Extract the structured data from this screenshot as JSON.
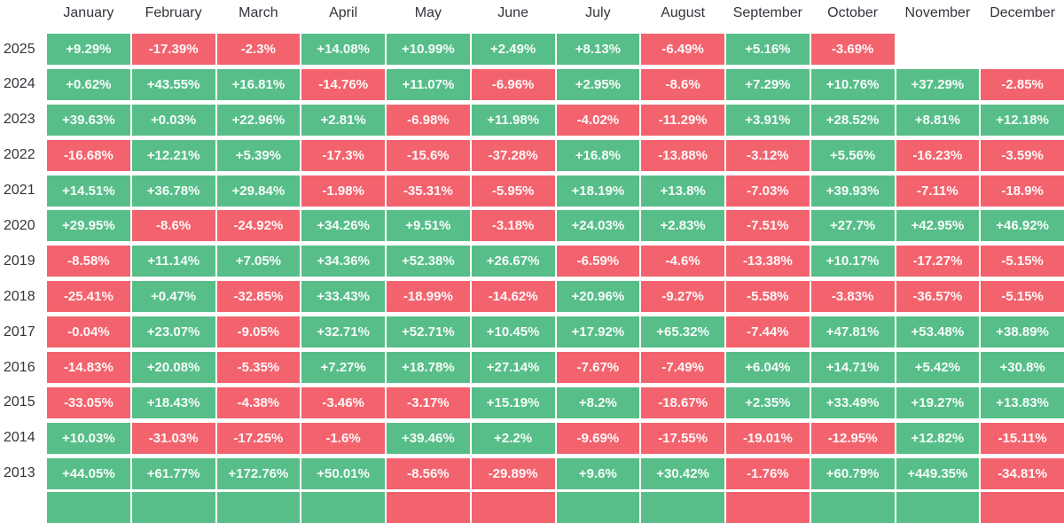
{
  "colors": {
    "positive": "#57BE89",
    "negative": "#F3636E"
  },
  "chart_data": {
    "type": "heatmap",
    "columns": [
      "January",
      "February",
      "March",
      "April",
      "May",
      "June",
      "July",
      "August",
      "September",
      "October",
      "November",
      "December"
    ],
    "rows": [
      {
        "year": "2025",
        "values": [
          "+9.29%",
          "-17.39%",
          "-2.3%",
          "+14.08%",
          "+10.99%",
          "+2.49%",
          "+8.13%",
          "-6.49%",
          "+5.16%",
          "-3.69%",
          "",
          ""
        ]
      },
      {
        "year": "2024",
        "values": [
          "+0.62%",
          "+43.55%",
          "+16.81%",
          "-14.76%",
          "+11.07%",
          "-6.96%",
          "+2.95%",
          "-8.6%",
          "+7.29%",
          "+10.76%",
          "+37.29%",
          "-2.85%"
        ]
      },
      {
        "year": "2023",
        "values": [
          "+39.63%",
          "+0.03%",
          "+22.96%",
          "+2.81%",
          "-6.98%",
          "+11.98%",
          "-4.02%",
          "-11.29%",
          "+3.91%",
          "+28.52%",
          "+8.81%",
          "+12.18%"
        ]
      },
      {
        "year": "2022",
        "values": [
          "-16.68%",
          "+12.21%",
          "+5.39%",
          "-17.3%",
          "-15.6%",
          "-37.28%",
          "+16.8%",
          "-13.88%",
          "-3.12%",
          "+5.56%",
          "-16.23%",
          "-3.59%"
        ]
      },
      {
        "year": "2021",
        "values": [
          "+14.51%",
          "+36.78%",
          "+29.84%",
          "-1.98%",
          "-35.31%",
          "-5.95%",
          "+18.19%",
          "+13.8%",
          "-7.03%",
          "+39.93%",
          "-7.11%",
          "-18.9%"
        ]
      },
      {
        "year": "2020",
        "values": [
          "+29.95%",
          "-8.6%",
          "-24.92%",
          "+34.26%",
          "+9.51%",
          "-3.18%",
          "+24.03%",
          "+2.83%",
          "-7.51%",
          "+27.7%",
          "+42.95%",
          "+46.92%"
        ]
      },
      {
        "year": "2019",
        "values": [
          "-8.58%",
          "+11.14%",
          "+7.05%",
          "+34.36%",
          "+52.38%",
          "+26.67%",
          "-6.59%",
          "-4.6%",
          "-13.38%",
          "+10.17%",
          "-17.27%",
          "-5.15%"
        ]
      },
      {
        "year": "2018",
        "values": [
          "-25.41%",
          "+0.47%",
          "-32.85%",
          "+33.43%",
          "-18.99%",
          "-14.62%",
          "+20.96%",
          "-9.27%",
          "-5.58%",
          "-3.83%",
          "-36.57%",
          "-5.15%"
        ]
      },
      {
        "year": "2017",
        "values": [
          "-0.04%",
          "+23.07%",
          "-9.05%",
          "+32.71%",
          "+52.71%",
          "+10.45%",
          "+17.92%",
          "+65.32%",
          "-7.44%",
          "+47.81%",
          "+53.48%",
          "+38.89%"
        ]
      },
      {
        "year": "2016",
        "values": [
          "-14.83%",
          "+20.08%",
          "-5.35%",
          "+7.27%",
          "+18.78%",
          "+27.14%",
          "-7.67%",
          "-7.49%",
          "+6.04%",
          "+14.71%",
          "+5.42%",
          "+30.8%"
        ]
      },
      {
        "year": "2015",
        "values": [
          "-33.05%",
          "+18.43%",
          "-4.38%",
          "-3.46%",
          "-3.17%",
          "+15.19%",
          "+8.2%",
          "-18.67%",
          "+2.35%",
          "+33.49%",
          "+19.27%",
          "+13.83%"
        ]
      },
      {
        "year": "2014",
        "values": [
          "+10.03%",
          "-31.03%",
          "-17.25%",
          "-1.6%",
          "+39.46%",
          "+2.2%",
          "-9.69%",
          "-17.55%",
          "-19.01%",
          "-12.95%",
          "+12.82%",
          "-15.11%"
        ]
      },
      {
        "year": "2013",
        "values": [
          "+44.05%",
          "+61.77%",
          "+172.76%",
          "+50.01%",
          "-8.56%",
          "-29.89%",
          "+9.6%",
          "+30.42%",
          "-1.76%",
          "+60.79%",
          "+449.35%",
          "-34.81%"
        ]
      }
    ],
    "partial_bottom_row_colors": [
      "pos",
      "pos",
      "pos",
      "pos",
      "neg",
      "neg",
      "pos",
      "pos",
      "neg",
      "pos",
      "pos",
      "neg"
    ]
  }
}
